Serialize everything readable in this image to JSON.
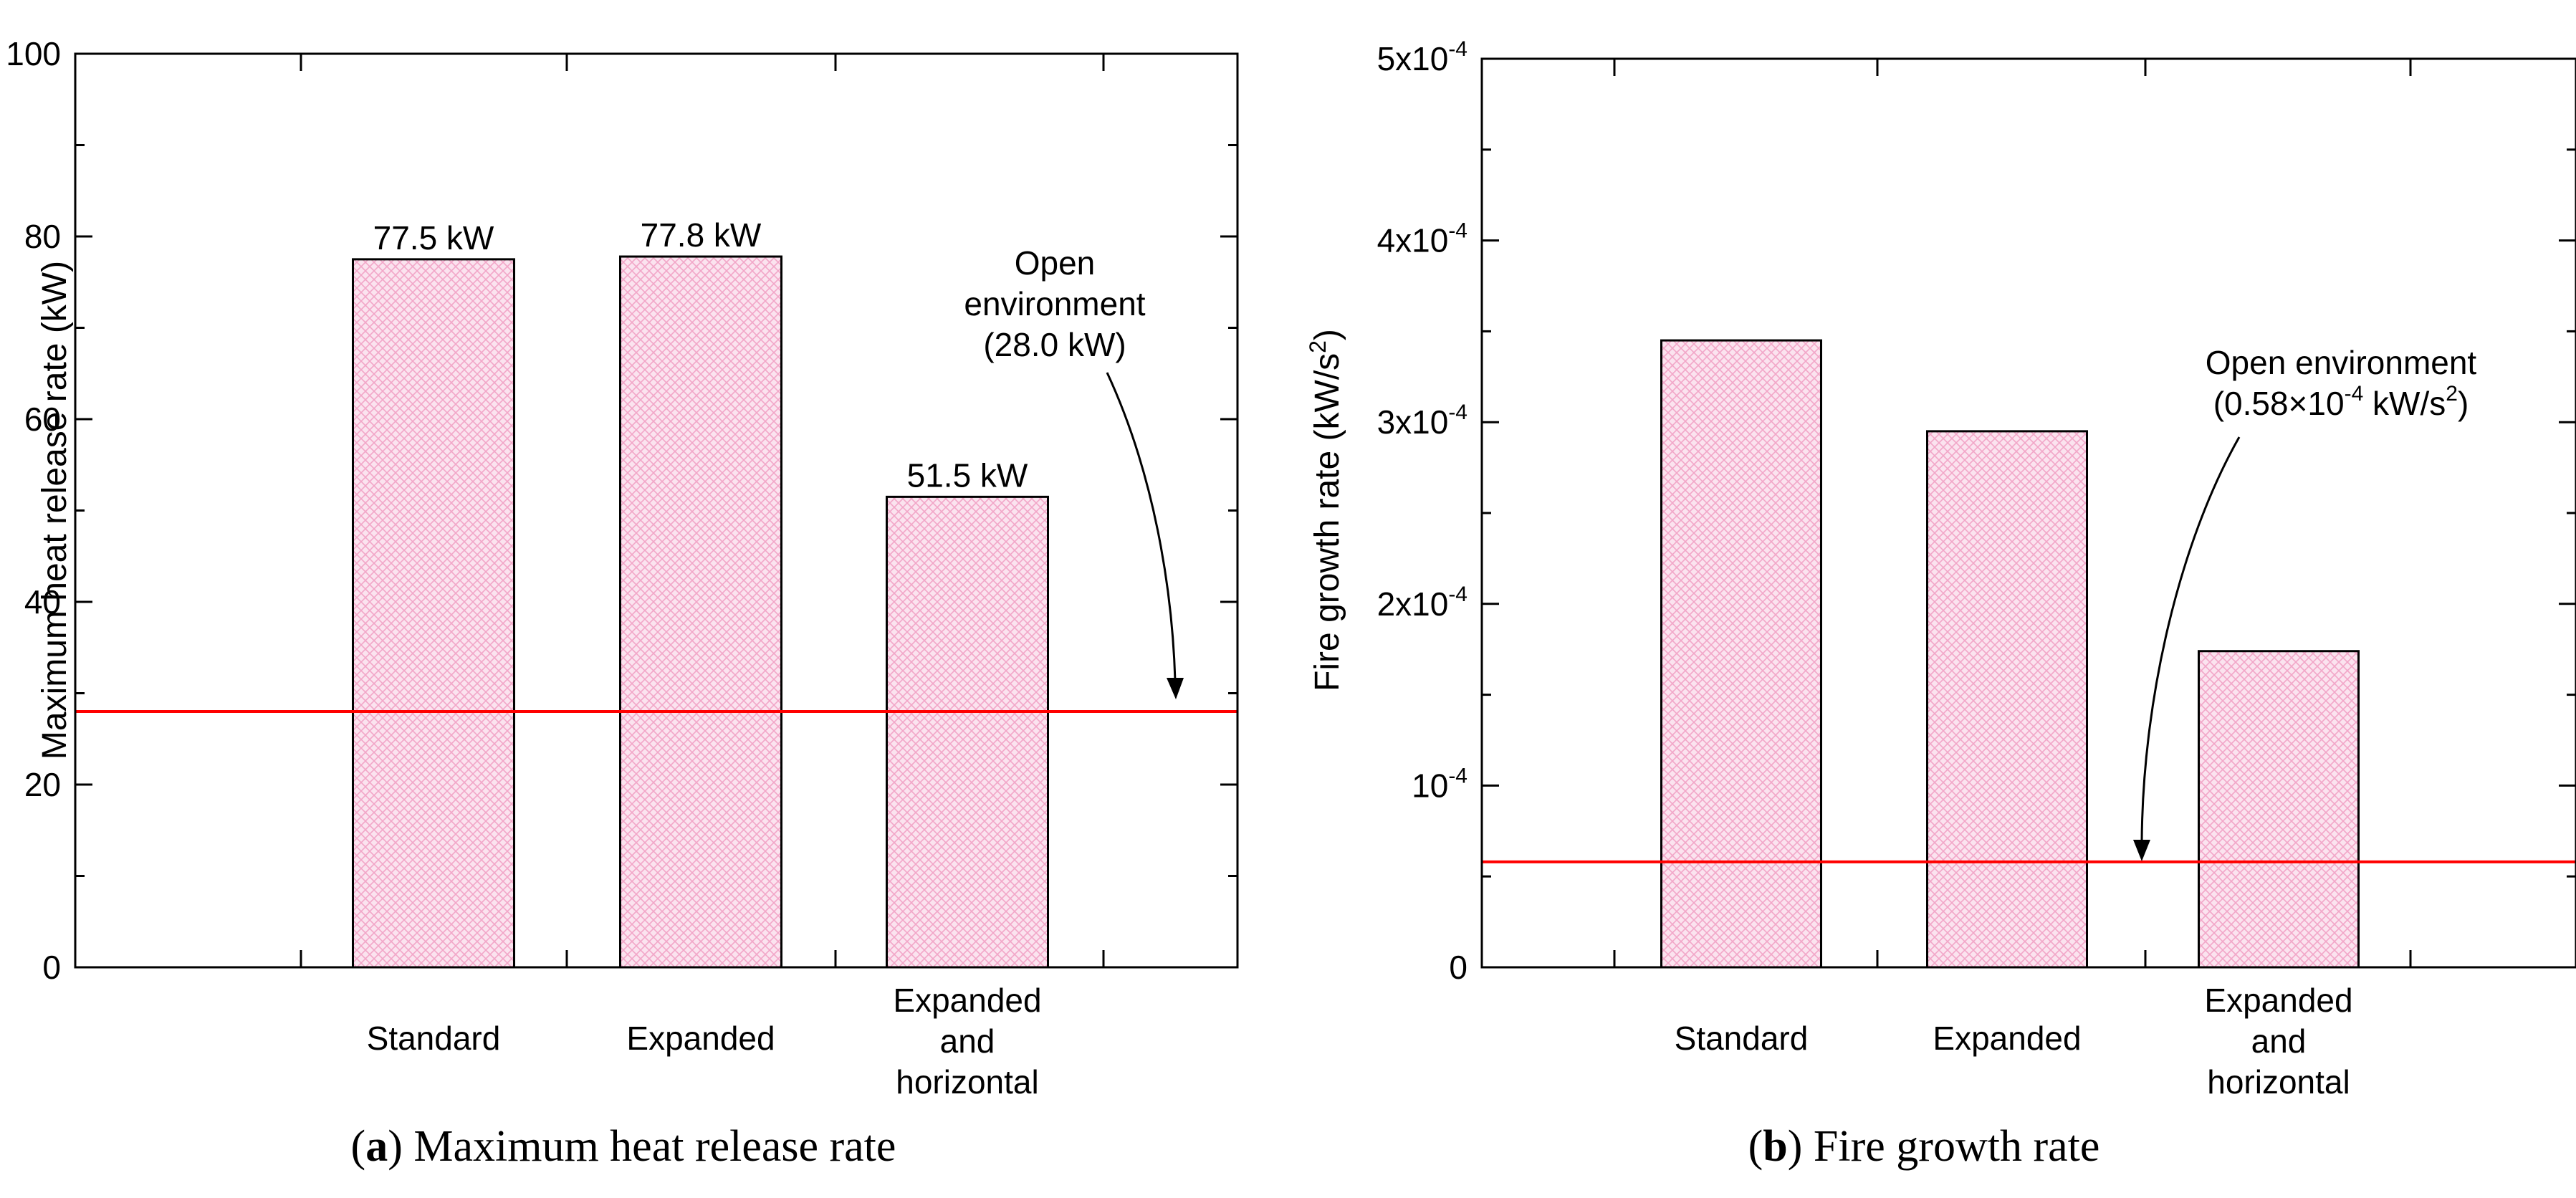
{
  "colors": {
    "bar_fill": "#fbe3ef",
    "bar_hatch": "#f2a6c8",
    "bar_stroke": "#000000",
    "reference_line": "#ff0000",
    "axis": "#000000"
  },
  "chart_data": [
    {
      "type": "bar",
      "panel": "a",
      "caption_label": "a",
      "caption_text": "Maximum heat release rate",
      "ylabel": "Maximum heat release rate (kW)",
      "xlabel": "",
      "ylim": [
        0,
        100
      ],
      "yticks": [
        0,
        20,
        40,
        60,
        80,
        100
      ],
      "ytick_labels": [
        "0",
        "20",
        "40",
        "60",
        "80",
        "100"
      ],
      "categories": [
        [
          "Standard"
        ],
        [
          "Expanded"
        ],
        [
          "Expanded",
          "and",
          "horizontal"
        ]
      ],
      "values": [
        77.5,
        77.8,
        51.5
      ],
      "data_labels": [
        "77.5 kW",
        "77.8 kW",
        "51.5 kW"
      ],
      "reference": {
        "value": 28.0,
        "label_lines": [
          "Open",
          "environment",
          "(28.0 kW)"
        ]
      }
    },
    {
      "type": "bar",
      "panel": "b",
      "caption_label": "b",
      "caption_text": "Fire growth rate",
      "ylabel_main": "Fire growth rate (kW/s",
      "ylabel_sup": "2",
      "ylabel_end": ")",
      "xlabel": "",
      "ylim": [
        0,
        0.0005
      ],
      "yticks": [
        0,
        0.0001,
        0.0002,
        0.0003,
        0.0004,
        0.0005
      ],
      "ytick_labels": [
        {
          "base": "0",
          "exp": ""
        },
        {
          "base": "10",
          "exp": "-4"
        },
        {
          "base": "2x10",
          "exp": "-4"
        },
        {
          "base": "3x10",
          "exp": "-4"
        },
        {
          "base": "4x10",
          "exp": "-4"
        },
        {
          "base": "5x10",
          "exp": "-4"
        }
      ],
      "categories": [
        [
          "Standard"
        ],
        [
          "Expanded"
        ],
        [
          "Expanded",
          "and",
          "horizontal"
        ]
      ],
      "values": [
        0.000345,
        0.000295,
        0.000174
      ],
      "reference": {
        "value": 5.8e-05,
        "label_line1": "Open environment",
        "label_line2_parts": [
          "(0.58×10",
          "-4",
          " kW/s",
          "2",
          ")"
        ]
      }
    }
  ]
}
